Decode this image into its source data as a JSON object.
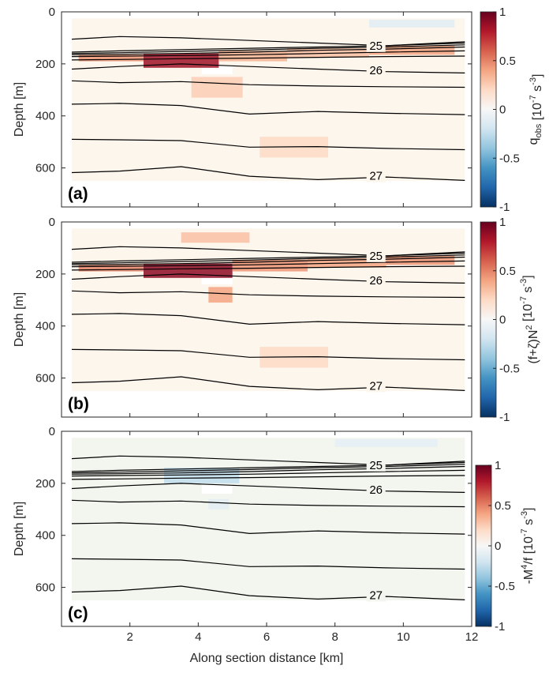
{
  "figure": {
    "xlabel": "Along section distance [km]",
    "ylabel": "Depth [m]"
  },
  "chart_data": [
    {
      "type": "heatmap",
      "panel_label": "(a)",
      "colorbar_label": "q_obs [10^-7 s^-3]",
      "colorbar_label_parts": {
        "q": "q",
        "sub": "obs",
        "unit_open": " [10",
        "sup": "-7",
        "unit_close": " s",
        "sup2": "-3",
        "end": "]"
      },
      "xlim": [
        0,
        12
      ],
      "ylim": [
        0,
        750
      ],
      "xticks": [
        2,
        4,
        6,
        8,
        10,
        12
      ],
      "yticks": [
        0,
        200,
        400,
        600
      ],
      "clim": [
        -1,
        1
      ],
      "cticks": [
        -1,
        -0.5,
        0,
        0.5,
        1
      ],
      "colormap": [
        "#053061",
        "#2166ac",
        "#4393c3",
        "#92c5de",
        "#d1e5f0",
        "#f7f7f7",
        "#fddbc7",
        "#f4a582",
        "#d6604d",
        "#b2182b",
        "#67001f"
      ],
      "background_color": "#fdf6ec",
      "field": [
        {
          "x": [
            2.4,
            4.6
          ],
          "y": [
            160,
            215
          ],
          "v": 0.85
        },
        {
          "x": [
            0.5,
            2.4
          ],
          "y": [
            165,
            190
          ],
          "v": 0.45
        },
        {
          "x": [
            4.6,
            6.6
          ],
          "y": [
            150,
            190
          ],
          "v": 0.35
        },
        {
          "x": [
            6.6,
            9.0
          ],
          "y": [
            140,
            175
          ],
          "v": 0.3
        },
        {
          "x": [
            9.0,
            11.5
          ],
          "y": [
            130,
            165
          ],
          "v": 0.4
        },
        {
          "x": [
            3.8,
            5.3
          ],
          "y": [
            250,
            330
          ],
          "v": 0.25
        },
        {
          "x": [
            5.8,
            7.8
          ],
          "y": [
            480,
            560
          ],
          "v": 0.2
        },
        {
          "x": [
            9.0,
            11.5
          ],
          "y": [
            30,
            60
          ],
          "v": -0.12
        }
      ]
    },
    {
      "type": "heatmap",
      "panel_label": "(b)",
      "colorbar_label": "(f+ζ)N^2 [10^-7 s^-3]",
      "colorbar_label_parts": {
        "q": "(f+ζ)N",
        "sub": "",
        "supq": "2",
        "unit_open": " [10",
        "sup": "-7",
        "unit_close": " s",
        "sup2": "-3",
        "end": "]"
      },
      "xlim": [
        0,
        12
      ],
      "ylim": [
        0,
        750
      ],
      "xticks": [
        2,
        4,
        6,
        8,
        10,
        12
      ],
      "yticks": [
        0,
        200,
        400,
        600
      ],
      "clim": [
        -1,
        1
      ],
      "cticks": [
        -1,
        -0.5,
        0,
        0.5,
        1
      ],
      "colormap": [
        "#053061",
        "#2166ac",
        "#4393c3",
        "#92c5de",
        "#d1e5f0",
        "#f7f7f7",
        "#fddbc7",
        "#f4a582",
        "#d6604d",
        "#b2182b",
        "#67001f"
      ],
      "background_color": "#fdf6ec",
      "field": [
        {
          "x": [
            2.4,
            5.0
          ],
          "y": [
            160,
            215
          ],
          "v": 0.9
        },
        {
          "x": [
            0.5,
            2.4
          ],
          "y": [
            165,
            190
          ],
          "v": 0.5
        },
        {
          "x": [
            5.0,
            7.2
          ],
          "y": [
            145,
            190
          ],
          "v": 0.45
        },
        {
          "x": [
            7.2,
            9.5
          ],
          "y": [
            140,
            175
          ],
          "v": 0.4
        },
        {
          "x": [
            9.5,
            11.5
          ],
          "y": [
            130,
            165
          ],
          "v": 0.45
        },
        {
          "x": [
            4.3,
            5.0
          ],
          "y": [
            250,
            310
          ],
          "v": 0.4
        },
        {
          "x": [
            3.5,
            5.5
          ],
          "y": [
            40,
            80
          ],
          "v": 0.3
        },
        {
          "x": [
            5.8,
            7.8
          ],
          "y": [
            480,
            560
          ],
          "v": 0.2
        }
      ]
    },
    {
      "type": "heatmap",
      "panel_label": "(c)",
      "colorbar_label": "-M^4/f [10^-7 s^-3]",
      "colorbar_label_parts": {
        "q": "-M",
        "sub": "",
        "supq": "4",
        "after": "/f",
        "unit_open": " [10",
        "sup": "-7",
        "unit_close": " s",
        "sup2": "-3",
        "end": "]"
      },
      "xlim": [
        0,
        12
      ],
      "ylim": [
        0,
        750
      ],
      "xticks": [
        2,
        4,
        6,
        8,
        10,
        12
      ],
      "yticks": [
        0,
        200,
        400,
        600
      ],
      "clim": [
        -1,
        1
      ],
      "cticks": [
        -1,
        -0.5,
        0,
        0.5,
        1
      ],
      "colormap": [
        "#053061",
        "#2166ac",
        "#4393c3",
        "#92c5de",
        "#d1e5f0",
        "#f7f7f7",
        "#fddbc7",
        "#f4a582",
        "#d6604d",
        "#b2182b",
        "#67001f"
      ],
      "background_color": "#f3f5ef",
      "field": [
        {
          "x": [
            3.0,
            5.2
          ],
          "y": [
            140,
            200
          ],
          "v": -0.25
        },
        {
          "x": [
            8.0,
            11.0
          ],
          "y": [
            30,
            60
          ],
          "v": -0.1
        },
        {
          "x": [
            4.3,
            4.9
          ],
          "y": [
            260,
            300
          ],
          "v": -0.12
        }
      ]
    }
  ],
  "contours": {
    "labels": [
      {
        "text": "25",
        "x": 9.2,
        "y": 130
      },
      {
        "text": "26",
        "x": 9.2,
        "y": 225
      },
      {
        "text": "27",
        "x": 9.2,
        "y": 630
      }
    ],
    "lines": [
      {
        "x": [
          0.3,
          1.7,
          3.5,
          5.5,
          7.5,
          9.5,
          11.8
        ],
        "y": [
          105,
          95,
          100,
          110,
          120,
          130,
          115
        ]
      },
      {
        "x": [
          0.3,
          1.7,
          3.5,
          5.5,
          7.5,
          9.5,
          11.8
        ],
        "y": [
          155,
          150,
          145,
          140,
          135,
          130,
          120
        ]
      },
      {
        "x": [
          0.3,
          1.7,
          3.5,
          5.5,
          7.5,
          9.5,
          11.8
        ],
        "y": [
          160,
          157,
          152,
          147,
          140,
          135,
          127
        ]
      },
      {
        "x": [
          0.3,
          1.7,
          3.5,
          5.5,
          7.5,
          9.5,
          11.8
        ],
        "y": [
          165,
          163,
          160,
          155,
          148,
          143,
          135
        ]
      },
      {
        "x": [
          0.3,
          1.7,
          3.5,
          5.5,
          7.5,
          9.5,
          11.8
        ],
        "y": [
          172,
          170,
          168,
          165,
          160,
          155,
          150
        ]
      },
      {
        "x": [
          0.3,
          1.7,
          3.5,
          5.5,
          7.5,
          9.5,
          11.8
        ],
        "y": [
          185,
          183,
          180,
          178,
          175,
          172,
          170
        ]
      },
      {
        "x": [
          0.3,
          1.7,
          3.5,
          5.5,
          7.5,
          9.5,
          11.8
        ],
        "y": [
          220,
          210,
          200,
          210,
          220,
          230,
          235
        ]
      },
      {
        "x": [
          0.3,
          1.7,
          3.5,
          5.5,
          7.5,
          9.5,
          11.8
        ],
        "y": [
          265,
          272,
          268,
          280,
          285,
          288,
          290
        ]
      },
      {
        "x": [
          0.3,
          1.7,
          3.5,
          5.5,
          7.5,
          9.5,
          11.8
        ],
        "y": [
          355,
          352,
          360,
          393,
          383,
          390,
          395
        ]
      },
      {
        "x": [
          0.3,
          1.7,
          3.5,
          5.5,
          7.5,
          9.5,
          11.8
        ],
        "y": [
          490,
          492,
          495,
          520,
          518,
          525,
          530
        ]
      },
      {
        "x": [
          0.3,
          1.7,
          3.5,
          5.5,
          7.5,
          9.5,
          11.8
        ],
        "y": [
          618,
          612,
          595,
          632,
          645,
          635,
          648
        ]
      }
    ]
  }
}
